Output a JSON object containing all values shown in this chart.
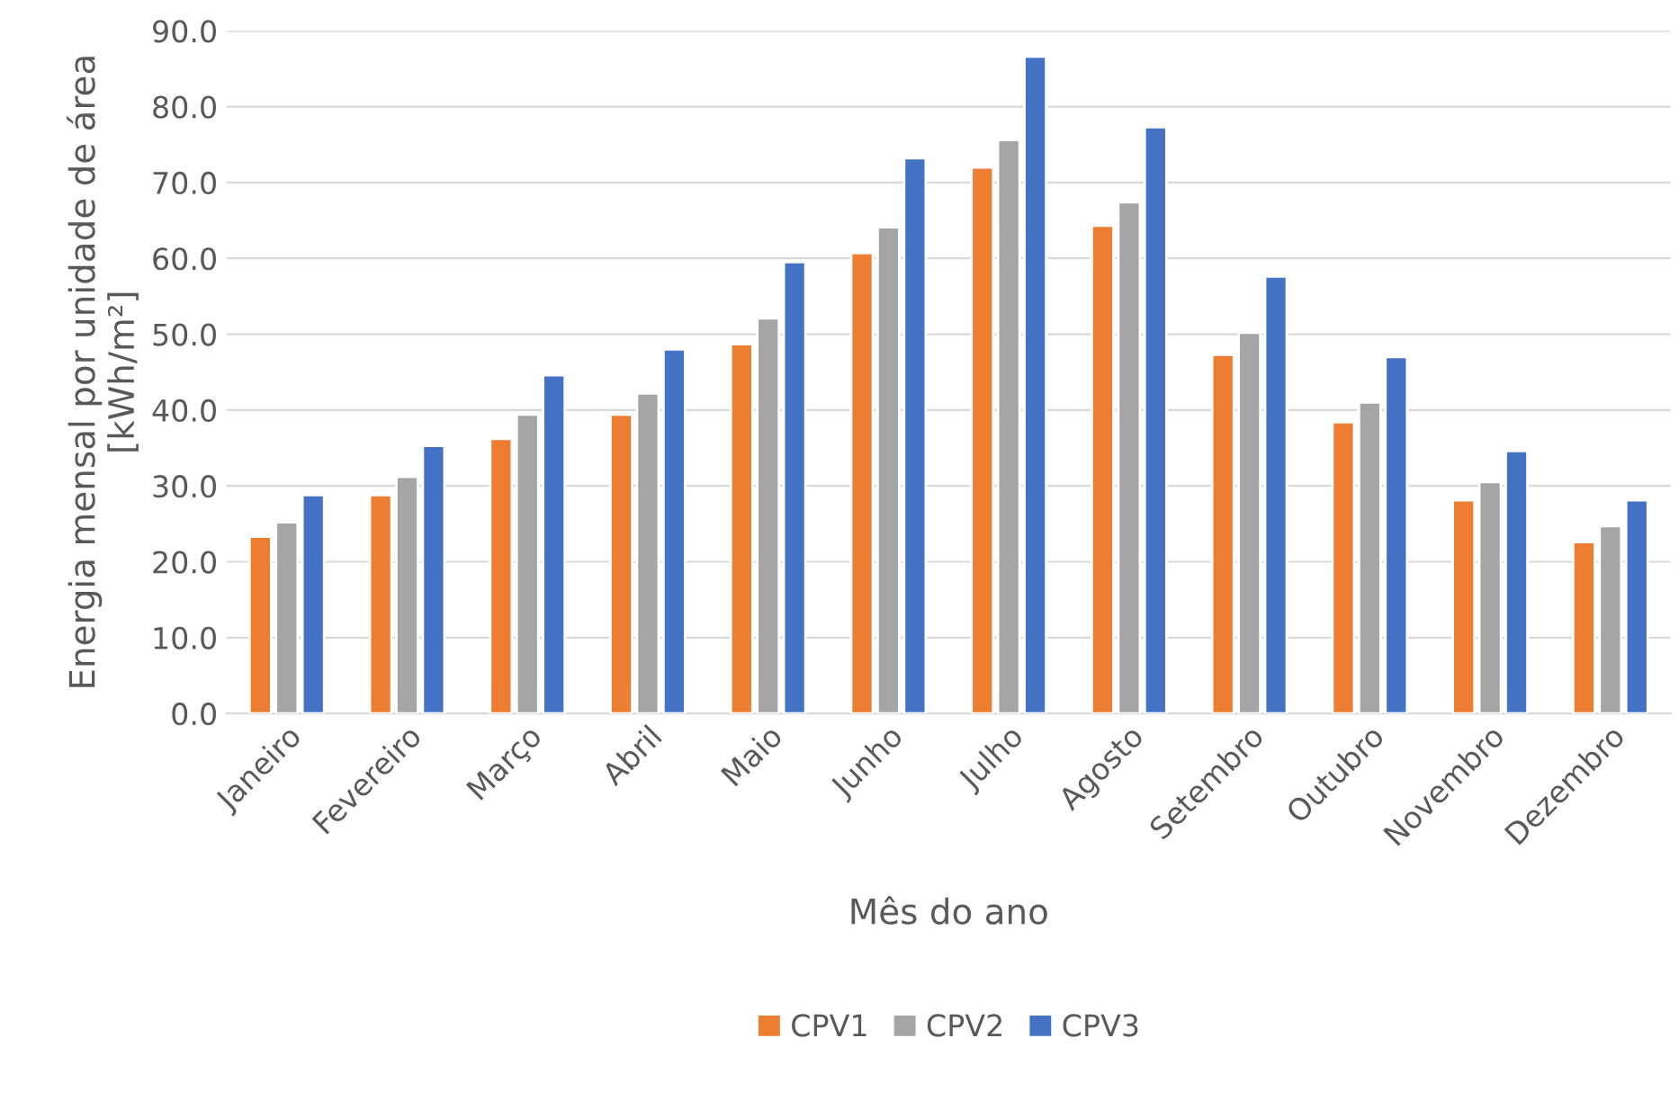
{
  "chart_data": {
    "type": "bar",
    "xlabel": "Mês do ano",
    "ylabel": "Energia mensal por unidade de área\n[kWh/m²]",
    "categories": [
      "Janeiro",
      "Fevereiro",
      "Março",
      "Abril",
      "Maio",
      "Junho",
      "Julho",
      "Agosto",
      "Setembro",
      "Outubro",
      "Novembro",
      "Dezembro"
    ],
    "series": [
      {
        "name": "CPV1",
        "color": "#ed7d31",
        "values": [
          23.3,
          28.8,
          36.2,
          39.4,
          48.7,
          60.7,
          72.0,
          64.3,
          47.3,
          38.4,
          28.1,
          22.6
        ]
      },
      {
        "name": "CPV2",
        "color": "#a5a5a5",
        "values": [
          25.2,
          31.2,
          39.4,
          42.2,
          52.1,
          64.1,
          75.6,
          67.4,
          50.2,
          41.0,
          30.5,
          24.7
        ]
      },
      {
        "name": "CPV3",
        "color": "#4472c4",
        "values": [
          28.8,
          35.3,
          44.6,
          48.0,
          59.5,
          73.2,
          86.6,
          77.3,
          57.6,
          47.0,
          34.6,
          28.1
        ]
      }
    ],
    "ylim": [
      0,
      90
    ],
    "yticks": [
      {
        "value": 0,
        "label": "0.0"
      },
      {
        "value": 10,
        "label": "10.0"
      },
      {
        "value": 20,
        "label": "20.0"
      },
      {
        "value": 30,
        "label": "30.0"
      },
      {
        "value": 40,
        "label": "40.0"
      },
      {
        "value": 50,
        "label": "50.0"
      },
      {
        "value": 60,
        "label": "60.0"
      },
      {
        "value": 70,
        "label": "70.0"
      },
      {
        "value": 80,
        "label": "80.0"
      },
      {
        "value": 90,
        "label": "90.0"
      }
    ],
    "grid": "y",
    "legend": "bottom"
  }
}
